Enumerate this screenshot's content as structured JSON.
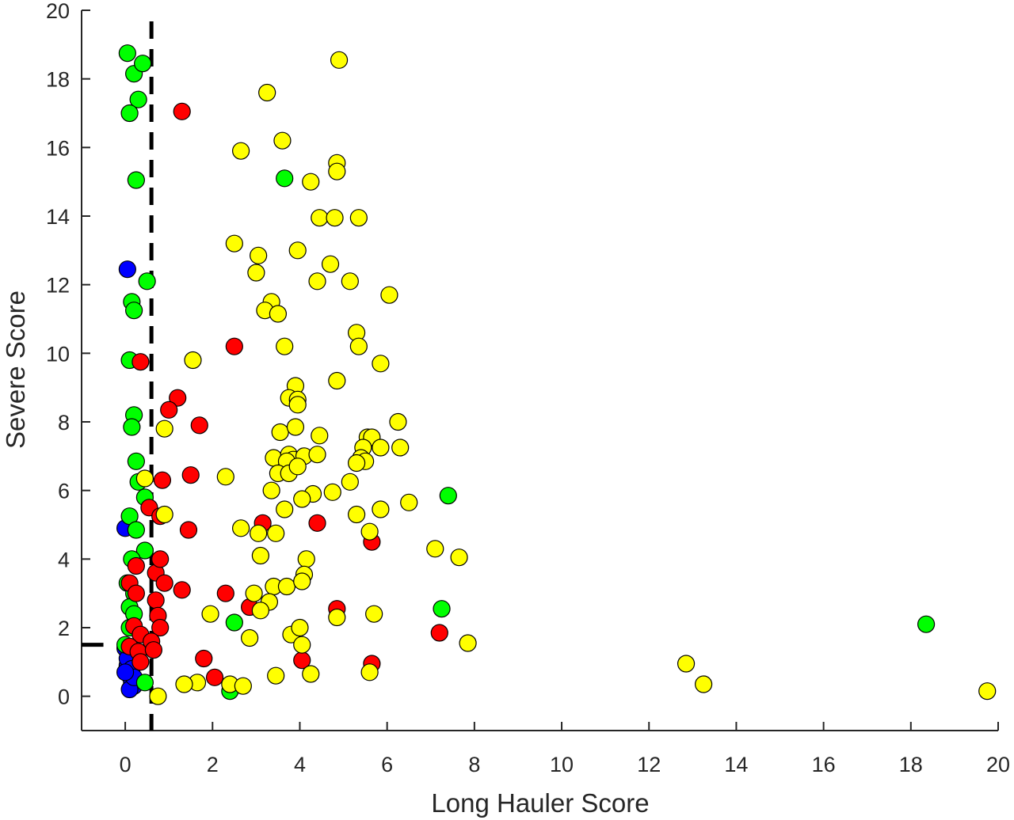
{
  "chart_data": {
    "type": "scatter",
    "title": "",
    "xlabel": "Long Hauler Score",
    "ylabel": "Severe Score",
    "xlim": [
      -1,
      20
    ],
    "ylim": [
      -1,
      20
    ],
    "xticks": [
      0,
      2,
      4,
      6,
      8,
      10,
      12,
      14,
      16,
      18,
      20
    ],
    "yticks": [
      0,
      2,
      4,
      6,
      8,
      10,
      12,
      14,
      16,
      18,
      20
    ],
    "grid": false,
    "legend": "none",
    "threshold_lines": [
      {
        "orientation": "vertical",
        "x": 0.6,
        "style": "dashed",
        "color": "#000000"
      },
      {
        "orientation": "horizontal",
        "y": 1.5,
        "x_range": [
          -1,
          -0.5
        ],
        "style": "dashed",
        "color": "#000000"
      }
    ],
    "groups": [
      {
        "color": "#0000ff",
        "points": [
          [
            0.05,
            12.45
          ],
          [
            0.0,
            4.9
          ],
          [
            0.0,
            1.4
          ],
          [
            0.05,
            0.9
          ],
          [
            0.1,
            0.6
          ],
          [
            0.15,
            0.4
          ],
          [
            0.2,
            0.3
          ],
          [
            0.1,
            0.2
          ],
          [
            0.05,
            1.1
          ],
          [
            0.15,
            0.8
          ],
          [
            0.2,
            0.55
          ],
          [
            0.0,
            0.7
          ]
        ]
      },
      {
        "color": "#00ff00",
        "points": [
          [
            0.05,
            18.75
          ],
          [
            0.2,
            18.15
          ],
          [
            0.4,
            18.45
          ],
          [
            0.3,
            17.4
          ],
          [
            0.1,
            17.0
          ],
          [
            0.25,
            15.05
          ],
          [
            0.5,
            12.1
          ],
          [
            0.15,
            11.5
          ],
          [
            0.2,
            11.25
          ],
          [
            0.1,
            9.8
          ],
          [
            0.2,
            8.2
          ],
          [
            0.15,
            7.85
          ],
          [
            0.25,
            6.85
          ],
          [
            0.3,
            6.25
          ],
          [
            0.45,
            5.8
          ],
          [
            0.1,
            5.25
          ],
          [
            0.25,
            4.85
          ],
          [
            0.45,
            4.25
          ],
          [
            0.15,
            4.0
          ],
          [
            0.05,
            3.3
          ],
          [
            0.2,
            3.0
          ],
          [
            0.1,
            2.6
          ],
          [
            0.2,
            2.4
          ],
          [
            0.1,
            2.0
          ],
          [
            0.0,
            1.5
          ],
          [
            0.45,
            0.4
          ],
          [
            2.4,
            0.15
          ],
          [
            2.5,
            2.15
          ],
          [
            3.65,
            15.1
          ],
          [
            7.4,
            5.85
          ],
          [
            7.25,
            2.55
          ],
          [
            18.35,
            2.1
          ]
        ]
      },
      {
        "color": "#ff0000",
        "points": [
          [
            1.3,
            17.05
          ],
          [
            0.35,
            9.75
          ],
          [
            2.5,
            10.2
          ],
          [
            1.2,
            8.7
          ],
          [
            1.0,
            8.35
          ],
          [
            1.7,
            7.9
          ],
          [
            0.85,
            6.3
          ],
          [
            1.5,
            6.45
          ],
          [
            0.55,
            5.5
          ],
          [
            0.8,
            5.25
          ],
          [
            1.45,
            4.85
          ],
          [
            0.25,
            3.8
          ],
          [
            0.7,
            3.6
          ],
          [
            0.8,
            4.0
          ],
          [
            0.9,
            3.3
          ],
          [
            1.3,
            3.1
          ],
          [
            0.1,
            3.3
          ],
          [
            0.25,
            3.0
          ],
          [
            0.7,
            2.8
          ],
          [
            0.75,
            2.35
          ],
          [
            0.8,
            2.0
          ],
          [
            0.2,
            2.05
          ],
          [
            0.35,
            1.8
          ],
          [
            0.6,
            1.6
          ],
          [
            0.1,
            1.45
          ],
          [
            0.3,
            1.3
          ],
          [
            0.65,
            1.35
          ],
          [
            0.35,
            1.0
          ],
          [
            1.8,
            1.1
          ],
          [
            2.05,
            0.55
          ],
          [
            2.3,
            3.0
          ],
          [
            2.85,
            2.6
          ],
          [
            3.15,
            5.05
          ],
          [
            4.4,
            5.05
          ],
          [
            4.85,
            2.55
          ],
          [
            4.05,
            1.05
          ],
          [
            5.65,
            4.5
          ],
          [
            5.65,
            0.95
          ],
          [
            7.2,
            1.85
          ]
        ]
      },
      {
        "color": "#ffff00",
        "points": [
          [
            4.9,
            18.55
          ],
          [
            3.25,
            17.6
          ],
          [
            2.65,
            15.9
          ],
          [
            3.6,
            16.2
          ],
          [
            4.85,
            15.55
          ],
          [
            4.85,
            15.3
          ],
          [
            4.25,
            15.0
          ],
          [
            4.45,
            13.95
          ],
          [
            4.8,
            13.95
          ],
          [
            5.35,
            13.95
          ],
          [
            2.5,
            13.2
          ],
          [
            3.05,
            12.85
          ],
          [
            3.95,
            13.0
          ],
          [
            3.0,
            12.35
          ],
          [
            4.7,
            12.6
          ],
          [
            4.4,
            12.1
          ],
          [
            5.15,
            12.1
          ],
          [
            6.05,
            11.7
          ],
          [
            3.35,
            11.5
          ],
          [
            3.2,
            11.25
          ],
          [
            3.5,
            11.15
          ],
          [
            5.3,
            10.6
          ],
          [
            5.35,
            10.2
          ],
          [
            3.65,
            10.2
          ],
          [
            1.55,
            9.8
          ],
          [
            5.85,
            9.7
          ],
          [
            4.85,
            9.2
          ],
          [
            3.9,
            9.05
          ],
          [
            3.75,
            8.7
          ],
          [
            3.95,
            8.65
          ],
          [
            3.95,
            8.5
          ],
          [
            0.9,
            7.8
          ],
          [
            3.55,
            7.7
          ],
          [
            3.9,
            7.85
          ],
          [
            4.45,
            7.6
          ],
          [
            5.55,
            7.55
          ],
          [
            6.25,
            8.0
          ],
          [
            5.65,
            7.55
          ],
          [
            5.45,
            7.25
          ],
          [
            5.85,
            7.25
          ],
          [
            6.3,
            7.25
          ],
          [
            3.4,
            6.95
          ],
          [
            3.75,
            7.05
          ],
          [
            3.85,
            6.9
          ],
          [
            4.1,
            7.0
          ],
          [
            4.4,
            7.05
          ],
          [
            3.7,
            6.85
          ],
          [
            3.5,
            6.5
          ],
          [
            3.75,
            6.5
          ],
          [
            3.95,
            6.7
          ],
          [
            5.4,
            6.95
          ],
          [
            5.5,
            6.85
          ],
          [
            5.3,
            6.8
          ],
          [
            2.3,
            6.4
          ],
          [
            3.35,
            6.0
          ],
          [
            4.3,
            5.9
          ],
          [
            4.05,
            5.75
          ],
          [
            5.15,
            6.25
          ],
          [
            4.75,
            5.95
          ],
          [
            3.65,
            5.45
          ],
          [
            5.3,
            5.3
          ],
          [
            5.85,
            5.45
          ],
          [
            6.5,
            5.65
          ],
          [
            0.45,
            6.35
          ],
          [
            0.9,
            5.3
          ],
          [
            2.65,
            4.9
          ],
          [
            3.05,
            4.75
          ],
          [
            3.45,
            4.75
          ],
          [
            5.6,
            4.8
          ],
          [
            3.1,
            4.1
          ],
          [
            4.15,
            4.0
          ],
          [
            4.1,
            3.55
          ],
          [
            7.1,
            4.3
          ],
          [
            7.65,
            4.05
          ],
          [
            3.4,
            3.2
          ],
          [
            3.7,
            3.2
          ],
          [
            4.05,
            3.35
          ],
          [
            2.95,
            3.0
          ],
          [
            3.3,
            2.75
          ],
          [
            3.1,
            2.5
          ],
          [
            1.95,
            2.4
          ],
          [
            4.85,
            2.3
          ],
          [
            5.7,
            2.4
          ],
          [
            2.85,
            1.7
          ],
          [
            3.8,
            1.8
          ],
          [
            4.0,
            2.0
          ],
          [
            4.05,
            1.5
          ],
          [
            7.85,
            1.55
          ],
          [
            4.25,
            0.65
          ],
          [
            3.45,
            0.6
          ],
          [
            5.6,
            0.7
          ],
          [
            1.65,
            0.4
          ],
          [
            1.35,
            0.35
          ],
          [
            2.4,
            0.35
          ],
          [
            2.7,
            0.3
          ],
          [
            0.75,
            0.0
          ],
          [
            12.85,
            0.95
          ],
          [
            13.25,
            0.35
          ],
          [
            19.75,
            0.15
          ]
        ]
      }
    ]
  }
}
